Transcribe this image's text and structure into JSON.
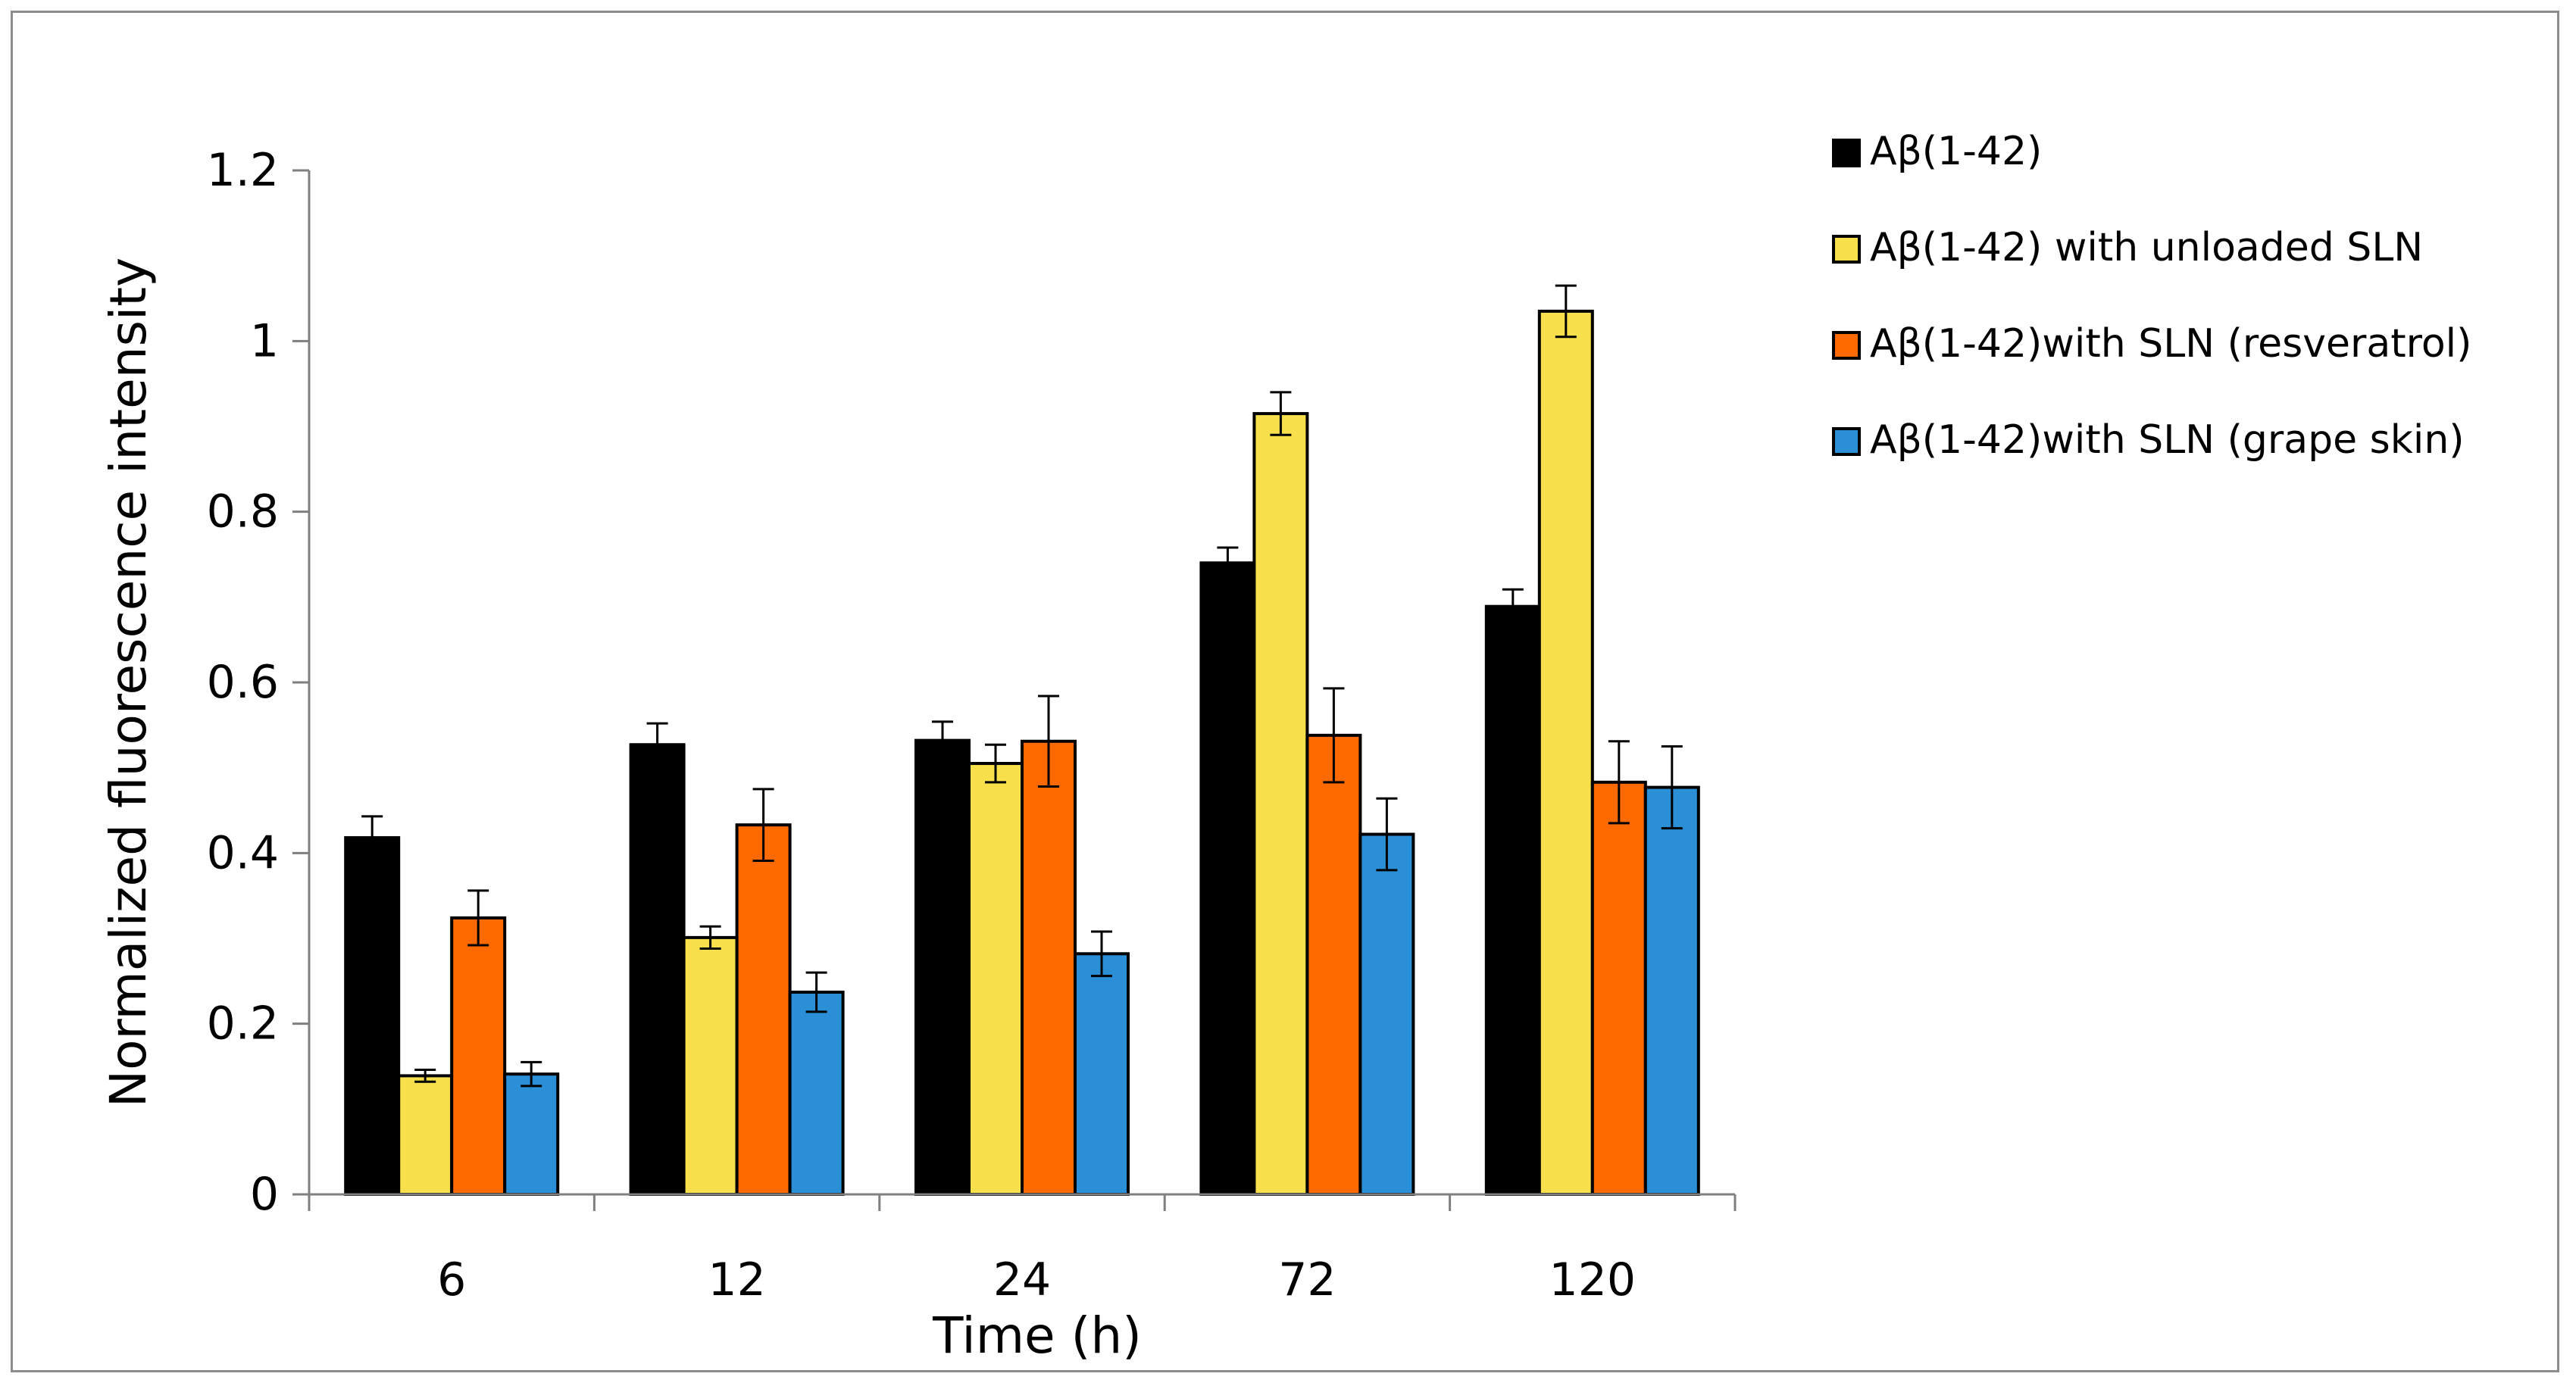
{
  "chart_data": {
    "type": "bar",
    "title": "",
    "xlabel": "Time (h)",
    "ylabel": "Normalized fluorescence intensity",
    "ylim": [
      0,
      1.2
    ],
    "ytick_values": [
      0,
      0.2,
      0.4,
      0.6,
      0.8,
      1.0,
      1.2
    ],
    "ytick_labels": [
      "0",
      "0.2",
      "0.4",
      "0.6",
      "0.8",
      "1",
      "1.2"
    ],
    "grid": false,
    "legend_position": "top-right",
    "categories": [
      "6",
      "12",
      "24",
      "72",
      "120"
    ],
    "series": [
      {
        "name": "Aβ(1-42)",
        "color": "#000000",
        "values": [
          0.418,
          0.527,
          0.532,
          0.74,
          0.689
        ],
        "errors": [
          0.025,
          0.025,
          0.022,
          0.018,
          0.02
        ]
      },
      {
        "name": "Aβ(1-42) with unloaded SLN",
        "color": "#f7e04b",
        "values": [
          0.139,
          0.301,
          0.505,
          0.915,
          1.035
        ],
        "errors": [
          0.007,
          0.013,
          0.022,
          0.025,
          0.03
        ]
      },
      {
        "name": "Aβ(1-42)with SLN (resveratrol)",
        "color": "#ff6a00",
        "values": [
          0.324,
          0.433,
          0.531,
          0.538,
          0.483
        ],
        "errors": [
          0.032,
          0.042,
          0.053,
          0.055,
          0.048
        ]
      },
      {
        "name": "Aβ(1-42)with SLN (grape skin)",
        "color": "#2a8fd6",
        "values": [
          0.141,
          0.237,
          0.282,
          0.422,
          0.477
        ],
        "errors": [
          0.014,
          0.023,
          0.026,
          0.042,
          0.048
        ]
      }
    ]
  }
}
